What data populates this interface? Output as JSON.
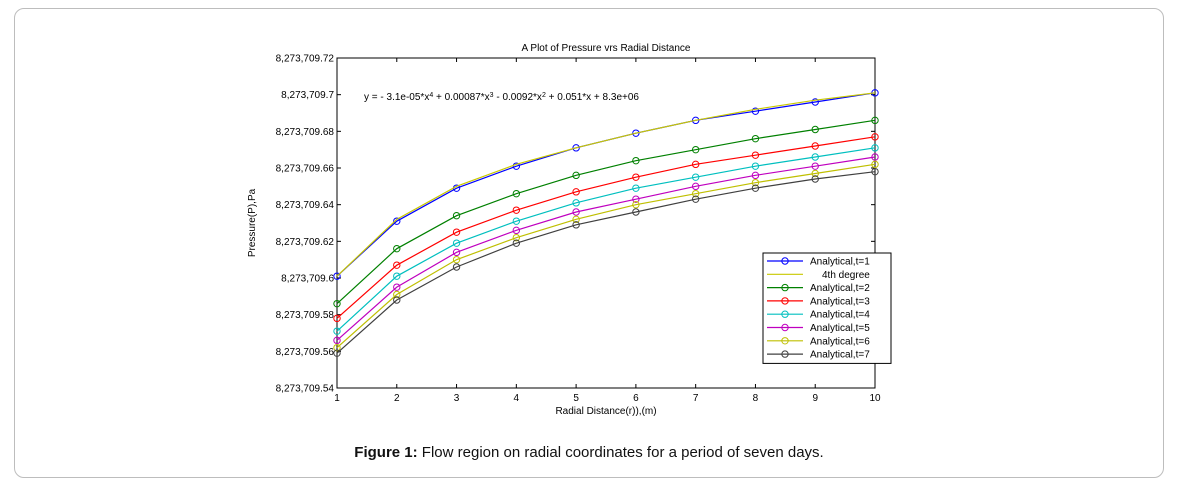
{
  "caption": {
    "label": "Figure 1:",
    "text": " Flow region on radial coordinates for a period of seven days."
  },
  "chart_data": {
    "type": "line",
    "title": "A Plot of Pressure vrs Radial Distance",
    "xlabel": "Radial Distance(r)),(m)",
    "ylabel": "Pressure(P),Pa",
    "annotation": {
      "base": [
        "y = - 3.1e-05*x",
        " + 0.00087*x",
        " - 0.0092*x",
        " + 0.051*x + 8.3e+06"
      ],
      "exponents": [
        "4",
        "3",
        "2"
      ]
    },
    "xlim": [
      1,
      10
    ],
    "ylim": [
      8273709.54,
      8273709.72
    ],
    "x_ticks": [
      "1",
      "2",
      "3",
      "4",
      "5",
      "6",
      "7",
      "8",
      "9",
      "10"
    ],
    "y_ticks": [
      "8,273,709.54",
      "8,273,709.56",
      "8,273,709.58",
      "8,273,709.6",
      "8,273,709.62",
      "8,273,709.64",
      "8,273,709.66",
      "8,273,709.68",
      "8,273,709.7",
      "8,273,709.72"
    ],
    "y_tick_values": [
      8273709.54,
      8273709.56,
      8273709.58,
      8273709.6,
      8273709.62,
      8273709.64,
      8273709.66,
      8273709.68,
      8273709.7,
      8273709.72
    ],
    "x": [
      1,
      2,
      3,
      4,
      5,
      6,
      7,
      8,
      9,
      10
    ],
    "legend_position": "bottom-right",
    "series": [
      {
        "name": "Analytical,t=1",
        "color": "#0000ff",
        "marker": true,
        "values": [
          8273709.601,
          8273709.631,
          8273709.649,
          8273709.661,
          8273709.671,
          8273709.679,
          8273709.686,
          8273709.691,
          8273709.696,
          8273709.701
        ]
      },
      {
        "name": "4th degree",
        "color": "#c8c800",
        "marker": false,
        "values": [
          8273709.601,
          8273709.632,
          8273709.65,
          8273709.662,
          8273709.671,
          8273709.679,
          8273709.686,
          8273709.692,
          8273709.697,
          8273709.701
        ]
      },
      {
        "name": "Analytical,t=2",
        "color": "#008000",
        "marker": true,
        "values": [
          8273709.586,
          8273709.616,
          8273709.634,
          8273709.646,
          8273709.656,
          8273709.664,
          8273709.67,
          8273709.676,
          8273709.681,
          8273709.686
        ]
      },
      {
        "name": "Analytical,t=3",
        "color": "#ff0000",
        "marker": true,
        "values": [
          8273709.578,
          8273709.607,
          8273709.625,
          8273709.637,
          8273709.647,
          8273709.655,
          8273709.662,
          8273709.667,
          8273709.672,
          8273709.677
        ]
      },
      {
        "name": "Analytical,t=4",
        "color": "#00bfbf",
        "marker": true,
        "values": [
          8273709.571,
          8273709.601,
          8273709.619,
          8273709.631,
          8273709.641,
          8273709.649,
          8273709.655,
          8273709.661,
          8273709.666,
          8273709.671
        ]
      },
      {
        "name": "Analytical,t=5",
        "color": "#bf00bf",
        "marker": true,
        "values": [
          8273709.566,
          8273709.595,
          8273709.614,
          8273709.626,
          8273709.636,
          8273709.643,
          8273709.65,
          8273709.656,
          8273709.661,
          8273709.666
        ]
      },
      {
        "name": "Analytical,t=6",
        "color": "#bfbf00",
        "marker": true,
        "values": [
          8273709.562,
          8273709.591,
          8273709.61,
          8273709.622,
          8273709.632,
          8273709.64,
          8273709.646,
          8273709.652,
          8273709.657,
          8273709.662
        ]
      },
      {
        "name": "Analytical,t=7",
        "color": "#404040",
        "marker": true,
        "values": [
          8273709.559,
          8273709.588,
          8273709.606,
          8273709.619,
          8273709.629,
          8273709.636,
          8273709.643,
          8273709.649,
          8273709.654,
          8273709.658
        ]
      }
    ]
  }
}
